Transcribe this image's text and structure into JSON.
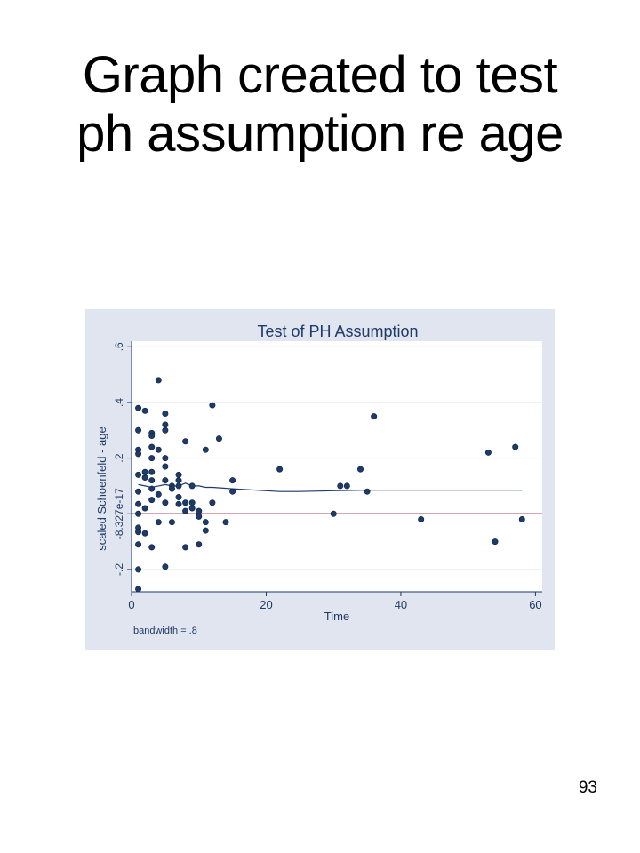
{
  "slide": {
    "title_line1": "Graph created to test",
    "title_line2": "ph assumption re age",
    "page_number": "93"
  },
  "colors": {
    "panel_background": "#e0e5ef",
    "plot_background": "#ffffff",
    "grid": "#e3e8f0",
    "points": "#1e3a66",
    "smooth_line": "#1e3a66",
    "reference_line": "#8b1a2b"
  },
  "chart_data": {
    "type": "scatter",
    "title": "Test of PH Assumption",
    "xlabel": "Time",
    "ylabel": "scaled Schoenfeld - age",
    "note": "bandwidth = .8",
    "xlim": [
      0,
      61
    ],
    "ylim": [
      -0.28,
      0.62
    ],
    "x_ticks": [
      {
        "value": 0,
        "label": "0"
      },
      {
        "value": 20,
        "label": "20"
      },
      {
        "value": 40,
        "label": "40"
      },
      {
        "value": 60,
        "label": "60"
      }
    ],
    "y_ticks": [
      {
        "value": -0.2,
        "label": "-.2"
      },
      {
        "value": 0,
        "label": "-8.327e-17"
      },
      {
        "value": 0.2,
        "label": ".2"
      },
      {
        "value": 0.4,
        "label": ".4"
      },
      {
        "value": 0.6,
        "label": ".6"
      }
    ],
    "grid": true,
    "reference_line_y": 0,
    "points": [
      [
        1,
        0.38
      ],
      [
        1,
        0.3
      ],
      [
        1,
        0.23
      ],
      [
        1,
        0.215
      ],
      [
        1,
        0.14
      ],
      [
        1,
        0.08
      ],
      [
        1,
        0.035
      ],
      [
        1,
        0.0
      ],
      [
        1,
        -0.05
      ],
      [
        1,
        -0.065
      ],
      [
        1,
        -0.11
      ],
      [
        1,
        -0.2
      ],
      [
        1,
        -0.27
      ],
      [
        2,
        0.37
      ],
      [
        2,
        0.15
      ],
      [
        2,
        0.13
      ],
      [
        2,
        0.02
      ],
      [
        2,
        -0.07
      ],
      [
        3,
        0.29
      ],
      [
        3,
        0.28
      ],
      [
        3,
        0.24
      ],
      [
        3,
        0.2
      ],
      [
        3,
        0.15
      ],
      [
        3,
        0.12
      ],
      [
        3,
        0.09
      ],
      [
        3,
        0.05
      ],
      [
        3,
        -0.12
      ],
      [
        4,
        0.48
      ],
      [
        4,
        0.23
      ],
      [
        4,
        0.07
      ],
      [
        4,
        -0.03
      ],
      [
        5,
        0.36
      ],
      [
        5,
        0.32
      ],
      [
        5,
        0.3
      ],
      [
        5,
        0.2
      ],
      [
        5,
        0.17
      ],
      [
        5,
        0.12
      ],
      [
        5,
        0.04
      ],
      [
        5,
        -0.19
      ],
      [
        6,
        0.1
      ],
      [
        6,
        0.09
      ],
      [
        6,
        -0.03
      ],
      [
        7,
        0.14
      ],
      [
        7,
        0.12
      ],
      [
        7,
        0.1
      ],
      [
        7,
        0.06
      ],
      [
        7,
        0.035
      ],
      [
        8,
        0.26
      ],
      [
        8,
        0.04
      ],
      [
        8,
        0.01
      ],
      [
        8,
        -0.12
      ],
      [
        9,
        0.1
      ],
      [
        9,
        0.04
      ],
      [
        9,
        0.02
      ],
      [
        10,
        0.01
      ],
      [
        10,
        -0.01
      ],
      [
        10,
        -0.11
      ],
      [
        11,
        0.23
      ],
      [
        11,
        -0.03
      ],
      [
        11,
        -0.06
      ],
      [
        12,
        0.39
      ],
      [
        12,
        0.04
      ],
      [
        13,
        0.27
      ],
      [
        14,
        -0.03
      ],
      [
        15,
        0.12
      ],
      [
        15,
        0.08
      ],
      [
        22,
        0.16
      ],
      [
        30,
        0.0
      ],
      [
        31,
        0.1
      ],
      [
        32,
        0.1
      ],
      [
        34,
        0.16
      ],
      [
        35,
        0.08
      ],
      [
        36,
        0.35
      ],
      [
        43,
        -0.02
      ],
      [
        53,
        0.22
      ],
      [
        54,
        -0.1
      ],
      [
        57,
        0.24
      ],
      [
        58,
        -0.02
      ]
    ],
    "smooth_line": [
      [
        1,
        0.105
      ],
      [
        2,
        0.1
      ],
      [
        3,
        0.095
      ],
      [
        4,
        0.1
      ],
      [
        5,
        0.105
      ],
      [
        6,
        0.1
      ],
      [
        7,
        0.1
      ],
      [
        8,
        0.11
      ],
      [
        9,
        0.1
      ],
      [
        10,
        0.1
      ],
      [
        11,
        0.095
      ],
      [
        12,
        0.095
      ],
      [
        15,
        0.09
      ],
      [
        20,
        0.083
      ],
      [
        22,
        0.08
      ],
      [
        25,
        0.08
      ],
      [
        30,
        0.083
      ],
      [
        35,
        0.085
      ],
      [
        40,
        0.085
      ],
      [
        45,
        0.085
      ],
      [
        50,
        0.085
      ],
      [
        55,
        0.085
      ],
      [
        58,
        0.085
      ]
    ]
  }
}
